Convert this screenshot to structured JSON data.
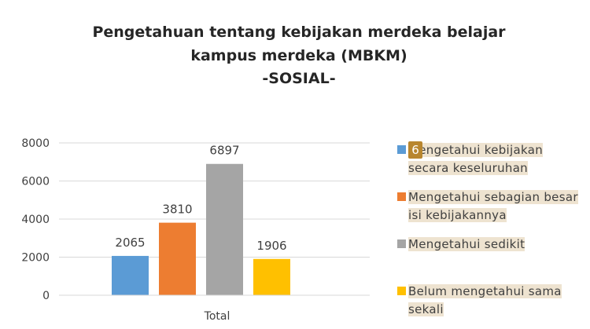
{
  "chart_data": {
    "type": "bar",
    "title": [
      "Pengetahuan tentang kebijakan merdeka belajar",
      "kampus merdeka (MBKM)",
      "-SOSIAL-"
    ],
    "categories": [
      "Total"
    ],
    "series": [
      {
        "name": "Mengetahui kebijakan secara keseluruhan",
        "color": "#5b9bd5",
        "values": [
          2065
        ]
      },
      {
        "name": "Mengetahui sebagian besar isi kebijakannya",
        "color": "#ed7d31",
        "values": [
          3810
        ]
      },
      {
        "name": "Mengetahui sedikit",
        "color": "#a5a5a5",
        "values": [
          6897
        ]
      },
      {
        "name": "Belum mengetahui sama sekali",
        "color": "#ffc000",
        "values": [
          1906
        ]
      }
    ],
    "ylim": [
      0,
      8000
    ],
    "yticks": [
      0,
      2000,
      4000,
      6000,
      8000
    ],
    "grid": true,
    "legend": "right",
    "annotation": "6"
  }
}
